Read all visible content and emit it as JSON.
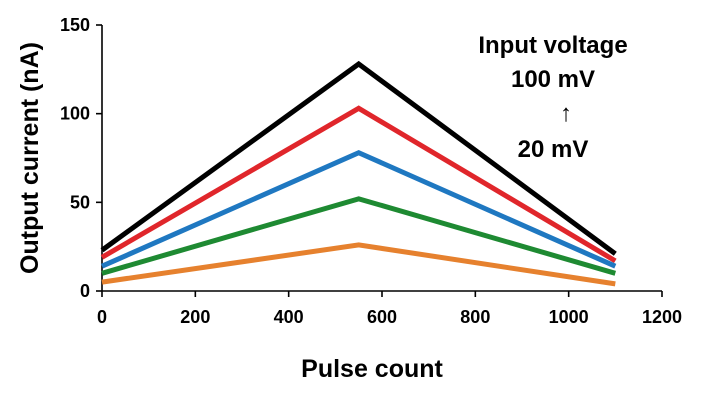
{
  "chart_data": {
    "type": "line",
    "title": "",
    "xlabel": "Pulse count",
    "ylabel": "Output current (nA)",
    "xlim": [
      0,
      1200
    ],
    "ylim": [
      0,
      150
    ],
    "xticks": [
      0,
      200,
      400,
      600,
      800,
      1000,
      1200
    ],
    "yticks": [
      0,
      50,
      100,
      150
    ],
    "grid": false,
    "legend": "none",
    "annotation": {
      "lines": [
        "Input voltage",
        "100 mV",
        "↑",
        "20 mV"
      ]
    },
    "series": [
      {
        "color": "#000000",
        "x": [
          0,
          550,
          1100
        ],
        "y": [
          23,
          128,
          21
        ]
      },
      {
        "color": "#e0262b",
        "x": [
          0,
          550,
          1100
        ],
        "y": [
          19,
          103,
          17
        ]
      },
      {
        "color": "#1f78c1",
        "x": [
          0,
          550,
          1100
        ],
        "y": [
          14,
          78,
          14
        ]
      },
      {
        "color": "#1e8a32",
        "x": [
          0,
          550,
          1100
        ],
        "y": [
          10,
          52,
          10
        ]
      },
      {
        "color": "#e6812e",
        "x": [
          0,
          550,
          1100
        ],
        "y": [
          5,
          26,
          4
        ]
      }
    ]
  }
}
